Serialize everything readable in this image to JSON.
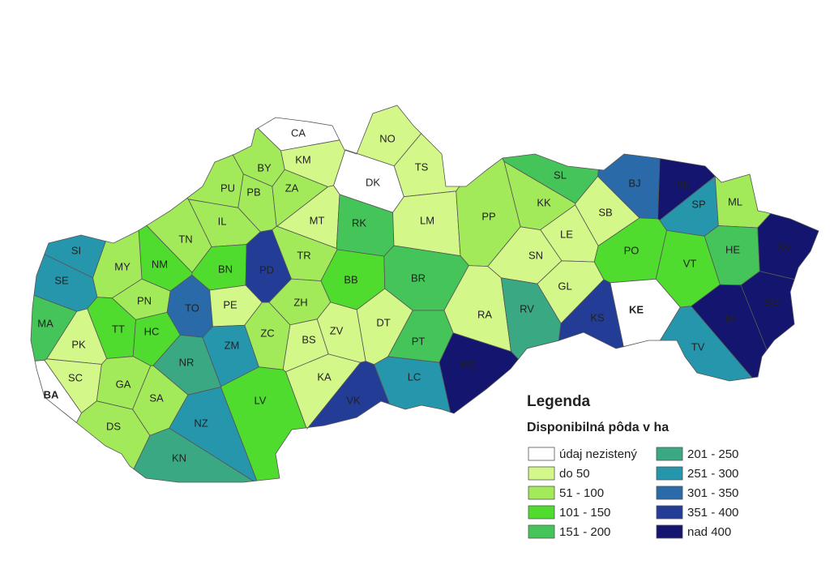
{
  "legend": {
    "title": "Legenda",
    "subtitle": "Disponibilná pôda v ha",
    "classes": [
      {
        "label": "údaj nezistený",
        "color": "#ffffff"
      },
      {
        "label": "do 50",
        "color": "#d4f78a"
      },
      {
        "label": "51 - 100",
        "color": "#a3ea5a"
      },
      {
        "label": "101 - 150",
        "color": "#4fdc2e"
      },
      {
        "label": "151 - 200",
        "color": "#45c45a"
      },
      {
        "label": "201 - 250",
        "color": "#3aa882"
      },
      {
        "label": "251 - 300",
        "color": "#2696ad"
      },
      {
        "label": "301 - 350",
        "color": "#2a6aa8"
      },
      {
        "label": "351 - 400",
        "color": "#233c96"
      },
      {
        "label": "nad 400",
        "color": "#14156e"
      }
    ]
  },
  "districts": [
    {
      "label": "CA",
      "color": "#ffffff"
    },
    {
      "label": "NO",
      "color": "#d4f78a"
    },
    {
      "label": "DK",
      "color": "#ffffff"
    },
    {
      "label": "TS",
      "color": "#d4f78a"
    },
    {
      "label": "BY",
      "color": "#a3ea5a"
    },
    {
      "label": "KM",
      "color": "#d4f78a"
    },
    {
      "label": "PU",
      "color": "#a3ea5a"
    },
    {
      "label": "PB",
      "color": "#a3ea5a"
    },
    {
      "label": "ZA",
      "color": "#a3ea5a"
    },
    {
      "label": "MT",
      "color": "#d4f78a"
    },
    {
      "label": "IL",
      "color": "#a3ea5a"
    },
    {
      "label": "RK",
      "color": "#45c45a"
    },
    {
      "label": "LM",
      "color": "#d4f78a"
    },
    {
      "label": "SL",
      "color": "#45c45a"
    },
    {
      "label": "KK",
      "color": "#a3ea5a"
    },
    {
      "label": "PP",
      "color": "#a3ea5a"
    },
    {
      "label": "SB",
      "color": "#d4f78a"
    },
    {
      "label": "BJ",
      "color": "#2a6aa8"
    },
    {
      "label": "SK",
      "color": "#14156e"
    },
    {
      "label": "SP",
      "color": "#2696ad"
    },
    {
      "label": "ML",
      "color": "#a3ea5a"
    },
    {
      "label": "HE",
      "color": "#45c45a"
    },
    {
      "label": "SV",
      "color": "#14156e"
    },
    {
      "label": "TN",
      "color": "#a3ea5a"
    },
    {
      "label": "NM",
      "color": "#4fdc2e"
    },
    {
      "label": "MY",
      "color": "#a3ea5a"
    },
    {
      "label": "SI",
      "color": "#2696ad"
    },
    {
      "label": "SE",
      "color": "#2696ad"
    },
    {
      "label": "BN",
      "color": "#4fdc2e"
    },
    {
      "label": "PD",
      "color": "#233c96"
    },
    {
      "label": "TR",
      "color": "#a3ea5a"
    },
    {
      "label": "BB",
      "color": "#4fdc2e"
    },
    {
      "label": "BR",
      "color": "#45c45a"
    },
    {
      "label": "LE",
      "color": "#d4f78a"
    },
    {
      "label": "SN",
      "color": "#d4f78a"
    },
    {
      "label": "PO",
      "color": "#4fdc2e"
    },
    {
      "label": "VT",
      "color": "#4fdc2e"
    },
    {
      "label": "GL",
      "color": "#d4f78a"
    },
    {
      "label": "PN",
      "color": "#a3ea5a"
    },
    {
      "label": "TO",
      "color": "#2a6aa8"
    },
    {
      "label": "PE",
      "color": "#d4f78a"
    },
    {
      "label": "ZH",
      "color": "#a3ea5a"
    },
    {
      "label": "MA",
      "color": "#45c45a"
    },
    {
      "label": "TT",
      "color": "#4fdc2e"
    },
    {
      "label": "HC",
      "color": "#4fdc2e"
    },
    {
      "label": "ZC",
      "color": "#a3ea5a"
    },
    {
      "label": "BS",
      "color": "#d4f78a"
    },
    {
      "label": "ZV",
      "color": "#d4f78a"
    },
    {
      "label": "DT",
      "color": "#d4f78a"
    },
    {
      "label": "RA",
      "color": "#d4f78a"
    },
    {
      "label": "RV",
      "color": "#3aa882"
    },
    {
      "label": "KS",
      "color": "#233c96"
    },
    {
      "label": "KE",
      "color": "#ffffff"
    },
    {
      "label": "MI",
      "color": "#14156e"
    },
    {
      "label": "SO",
      "color": "#14156e"
    },
    {
      "label": "TV",
      "color": "#2696ad"
    },
    {
      "label": "PK",
      "color": "#d4f78a"
    },
    {
      "label": "NR",
      "color": "#3aa882"
    },
    {
      "label": "ZM",
      "color": "#2696ad"
    },
    {
      "label": "PT",
      "color": "#45c45a"
    },
    {
      "label": "KA",
      "color": "#d4f78a"
    },
    {
      "label": "LC",
      "color": "#2696ad"
    },
    {
      "label": "RS",
      "color": "#14156e"
    },
    {
      "label": "SC",
      "color": "#d4f78a"
    },
    {
      "label": "GA",
      "color": "#a3ea5a"
    },
    {
      "label": "SA",
      "color": "#a3ea5a"
    },
    {
      "label": "BA",
      "color": "#ffffff"
    },
    {
      "label": "LV",
      "color": "#4fdc2e"
    },
    {
      "label": "VK",
      "color": "#233c96"
    },
    {
      "label": "NZ",
      "color": "#2696ad"
    },
    {
      "label": "DS",
      "color": "#a3ea5a"
    },
    {
      "label": "KN",
      "color": "#3aa882"
    }
  ]
}
